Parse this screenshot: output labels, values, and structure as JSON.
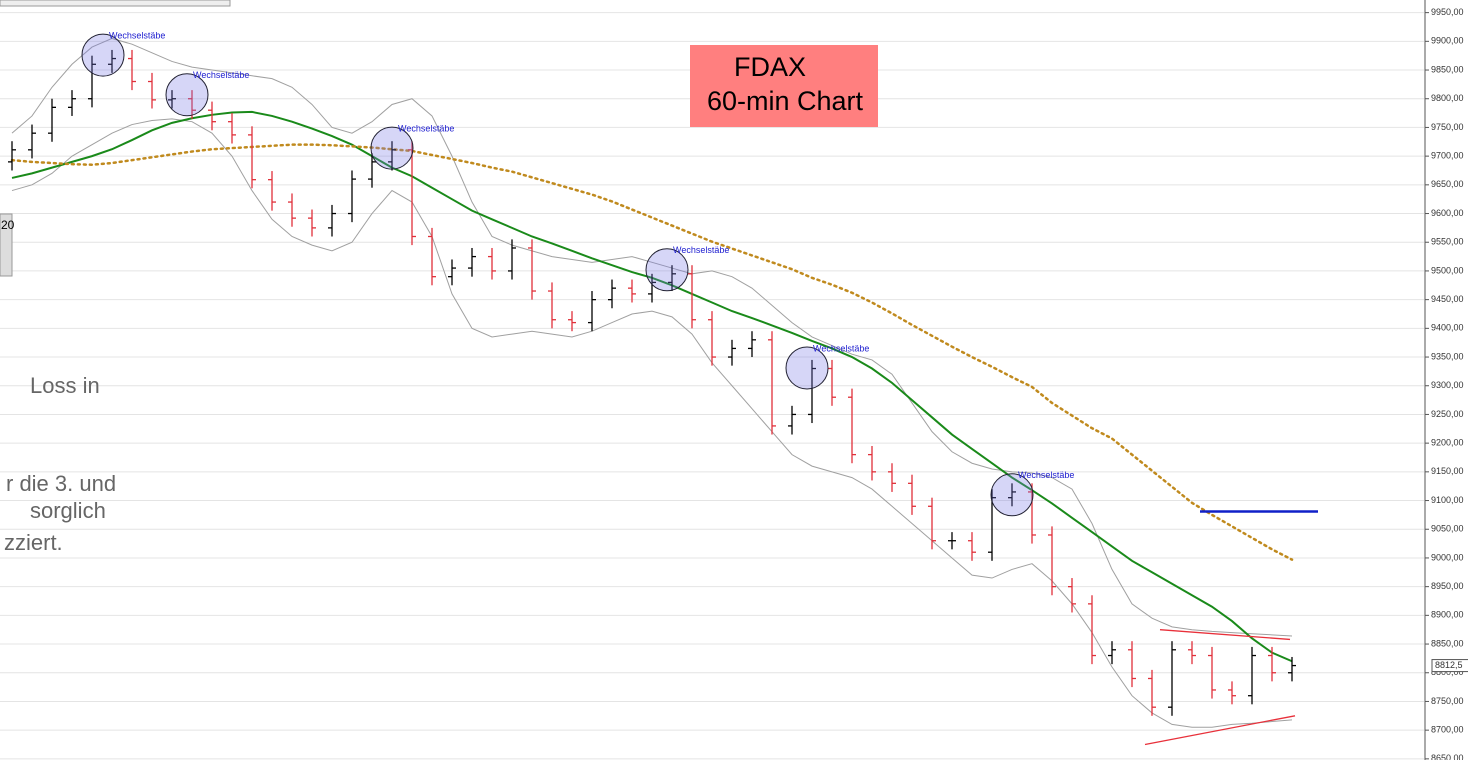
{
  "chart_data": {
    "type": "ohlc",
    "title": [
      "FDAX",
      "60-min Chart"
    ],
    "xlim": [
      -0.6,
      70.6
    ],
    "ylim": [
      8648,
      9972
    ],
    "grid": true,
    "up_color": "#000000",
    "down_color": "#e0303a",
    "yticks": [
      {
        "value": 9950,
        "label": "9950,00"
      },
      {
        "value": 9900,
        "label": "9900,00"
      },
      {
        "value": 9850,
        "label": "9850,00"
      },
      {
        "value": 9800,
        "label": "9800,00"
      },
      {
        "value": 9750,
        "label": "9750,00"
      },
      {
        "value": 9700,
        "label": "9700,00"
      },
      {
        "value": 9650,
        "label": "9650,00"
      },
      {
        "value": 9600,
        "label": "9600,00"
      },
      {
        "value": 9550,
        "label": "9550,00"
      },
      {
        "value": 9500,
        "label": "9500,00"
      },
      {
        "value": 9450,
        "label": "9450,00"
      },
      {
        "value": 9400,
        "label": "9400,00"
      },
      {
        "value": 9350,
        "label": "9350,00"
      },
      {
        "value": 9300,
        "label": "9300,00"
      },
      {
        "value": 9250,
        "label": "9250,00"
      },
      {
        "value": 9200,
        "label": "9200,00"
      },
      {
        "value": 9150,
        "label": "9150,00"
      },
      {
        "value": 9100,
        "label": "9100,00"
      },
      {
        "value": 9050,
        "label": "9050,00"
      },
      {
        "value": 9000,
        "label": "9000,00"
      },
      {
        "value": 8950,
        "label": "8950,00"
      },
      {
        "value": 8900,
        "label": "8900,00"
      },
      {
        "value": 8850,
        "label": "8850,00"
      },
      {
        "value": 8800,
        "label": "8800,00"
      },
      {
        "value": 8750,
        "label": "8750,00"
      },
      {
        "value": 8700,
        "label": "8700,00"
      },
      {
        "value": 8650,
        "label": "8650,00"
      }
    ],
    "open": [
      9690,
      9711,
      9740,
      9785,
      9800,
      9860,
      9870,
      9830,
      9798,
      9800,
      9780,
      9760,
      9737,
      9659,
      9620,
      9592,
      9575,
      9600,
      9660,
      9690,
      9711,
      9560,
      9490,
      9505,
      9525,
      9500,
      9540,
      9465,
      9415,
      9410,
      9450,
      9470,
      9460,
      9480,
      9495,
      9415,
      9350,
      9365,
      9380,
      9230,
      9250,
      9330,
      9280,
      9180,
      9150,
      9130,
      9090,
      9030,
      9030,
      9010,
      9105,
      9115,
      9040,
      8950,
      8920,
      8830,
      8840,
      8790,
      8740,
      8840,
      8830,
      8770,
      8760,
      8830,
      8800
    ],
    "high": [
      9726,
      9755,
      9800,
      9815,
      9875,
      9885,
      9885,
      9845,
      9815,
      9815,
      9795,
      9775,
      9752,
      9674,
      9635,
      9607,
      9615,
      9675,
      9705,
      9726,
      9726,
      9575,
      9520,
      9540,
      9540,
      9555,
      9555,
      9480,
      9430,
      9465,
      9485,
      9485,
      9495,
      9510,
      9510,
      9430,
      9380,
      9395,
      9395,
      9265,
      9345,
      9345,
      9295,
      9195,
      9165,
      9145,
      9105,
      9045,
      9045,
      9120,
      9130,
      9130,
      9055,
      8965,
      8935,
      8855,
      8855,
      8805,
      8855,
      8855,
      8845,
      8785,
      8845,
      8845,
      8827.5
    ],
    "low": [
      9675,
      9696,
      9725,
      9770,
      9785,
      9845,
      9815,
      9783,
      9783,
      9765,
      9745,
      9722,
      9644,
      9605,
      9577,
      9560,
      9560,
      9585,
      9645,
      9675,
      9545,
      9475,
      9475,
      9490,
      9485,
      9485,
      9450,
      9400,
      9395,
      9395,
      9435,
      9445,
      9445,
      9465,
      9400,
      9335,
      9335,
      9350,
      9215,
      9215,
      9235,
      9265,
      9165,
      9135,
      9115,
      9075,
      9015,
      9015,
      8995,
      8995,
      9090,
      9025,
      8935,
      8905,
      8815,
      8815,
      8775,
      8725,
      8725,
      8815,
      8755,
      8745,
      8745,
      8785,
      8785
    ],
    "close": [
      9711,
      9740,
      9785,
      9800,
      9860,
      9870,
      9830,
      9798,
      9800,
      9780,
      9760,
      9737,
      9659,
      9620,
      9592,
      9575,
      9600,
      9660,
      9690,
      9711,
      9560,
      9490,
      9505,
      9525,
      9500,
      9540,
      9465,
      9415,
      9410,
      9450,
      9470,
      9460,
      9480,
      9495,
      9415,
      9350,
      9365,
      9380,
      9230,
      9250,
      9330,
      9280,
      9180,
      9150,
      9130,
      9090,
      9030,
      9030,
      9010,
      9105,
      9115,
      9040,
      8950,
      8920,
      8830,
      8840,
      8790,
      8740,
      8840,
      8830,
      8770,
      8760,
      8830,
      8800,
      8812.5
    ],
    "lines": [
      {
        "color": "#a0a0a0",
        "width": 1,
        "dash": "",
        "values": [
          9740,
          9770,
          9820,
          9860,
          9890,
          9905,
          9895,
          9880,
          9865,
          9855,
          9850,
          9845,
          9840,
          9835,
          9820,
          9790,
          9750,
          9740,
          9760,
          9790,
          9800,
          9770,
          9700,
          9620,
          9560,
          9545,
          9535,
          9525,
          9520,
          9515,
          9520,
          9525,
          9515,
          9505,
          9495,
          9500,
          9490,
          9470,
          9440,
          9410,
          9385,
          9370,
          9355,
          9345,
          9320,
          9270,
          9220,
          9185,
          9165,
          9155,
          9150,
          9148,
          9140,
          9120,
          9060,
          8980,
          8920,
          8895,
          8880,
          8875,
          8872,
          8870,
          8868,
          8866,
          8864
        ]
      },
      {
        "color": "#a0a0a0",
        "width": 1,
        "dash": "",
        "values": [
          9640,
          9650,
          9670,
          9700,
          9720,
          9740,
          9755,
          9762,
          9765,
          9760,
          9740,
          9700,
          9640,
          9590,
          9560,
          9545,
          9535,
          9550,
          9600,
          9640,
          9620,
          9560,
          9460,
          9400,
          9385,
          9390,
          9395,
          9390,
          9385,
          9395,
          9410,
          9425,
          9430,
          9420,
          9390,
          9340,
          9300,
          9260,
          9220,
          9180,
          9160,
          9150,
          9140,
          9120,
          9090,
          9060,
          9030,
          9000,
          8970,
          8965,
          8980,
          8990,
          8960,
          8920,
          8870,
          8810,
          8760,
          8730,
          8710,
          8705,
          8705,
          8710,
          8712,
          8715,
          8718
        ]
      },
      {
        "color": "#1a8a1a",
        "width": 2,
        "dash": "",
        "values": [
          9662,
          9670,
          9680,
          9690,
          9700,
          9712,
          9728,
          9745,
          9758,
          9766,
          9772,
          9776,
          9777,
          9770,
          9760,
          9748,
          9735,
          9720,
          9700,
          9680,
          9665,
          9645,
          9625,
          9605,
          9590,
          9575,
          9560,
          9548,
          9535,
          9522,
          9510,
          9498,
          9488,
          9475,
          9460,
          9445,
          9430,
          9418,
          9405,
          9392,
          9378,
          9365,
          9350,
          9330,
          9305,
          9275,
          9245,
          9215,
          9190,
          9165,
          9140,
          9118,
          9095,
          9070,
          9045,
          9020,
          8995,
          8975,
          8955,
          8935,
          8915,
          8890,
          8860,
          8835,
          8820
        ]
      },
      {
        "color": "#c08a1e",
        "width": 2.5,
        "dash": "2 4",
        "values": [
          9693,
          9690,
          9688,
          9686,
          9685,
          9688,
          9693,
          9698,
          9703,
          9708,
          9712,
          9714,
          9716,
          9718,
          9720,
          9720,
          9719,
          9717,
          9715,
          9712,
          9709,
          9702,
          9695,
          9688,
          9680,
          9673,
          9663,
          9653,
          9643,
          9633,
          9621,
          9607,
          9593,
          9579,
          9565,
          9551,
          9539,
          9527,
          9515,
          9503,
          9488,
          9476,
          9462,
          9445,
          9426,
          9406,
          9387,
          9368,
          9350,
          9333,
          9315,
          9298,
          9270,
          9248,
          9226,
          9208,
          9180,
          9152,
          9124,
          9096,
          9075,
          9055,
          9035,
          9015,
          8997
        ]
      }
    ],
    "trendlines": [
      {
        "color": "#e8303a",
        "x": [
          57.4,
          63.9
        ],
        "y": [
          8875,
          8858
        ]
      },
      {
        "color": "#e8303a",
        "x": [
          56.65,
          64.15
        ],
        "y": [
          8675,
          8725
        ]
      },
      {
        "color": "#1020c8",
        "x": [
          59.4,
          65.3
        ],
        "y": [
          9081,
          9081
        ]
      }
    ],
    "annotations": [
      {
        "text": "Wechselstäbe",
        "x": 4.55,
        "y": 9876
      },
      {
        "text": "Wechselstäbe",
        "x": 8.75,
        "y": 9807
      },
      {
        "text": "Wechselstäbe",
        "x": 19,
        "y": 9714
      },
      {
        "text": "Wechselstäbe",
        "x": 32.75,
        "y": 9502
      },
      {
        "text": "Wechselstäbe",
        "x": 39.75,
        "y": 9331
      },
      {
        "text": "Wechselstäbe",
        "x": 50,
        "y": 9110
      }
    ],
    "last_price": {
      "value": 8812.5,
      "label": "8812,5"
    },
    "overlay_texts": [
      "20",
      "Loss in",
      "r die 3. und",
      "sorglich",
      "zziert."
    ]
  }
}
